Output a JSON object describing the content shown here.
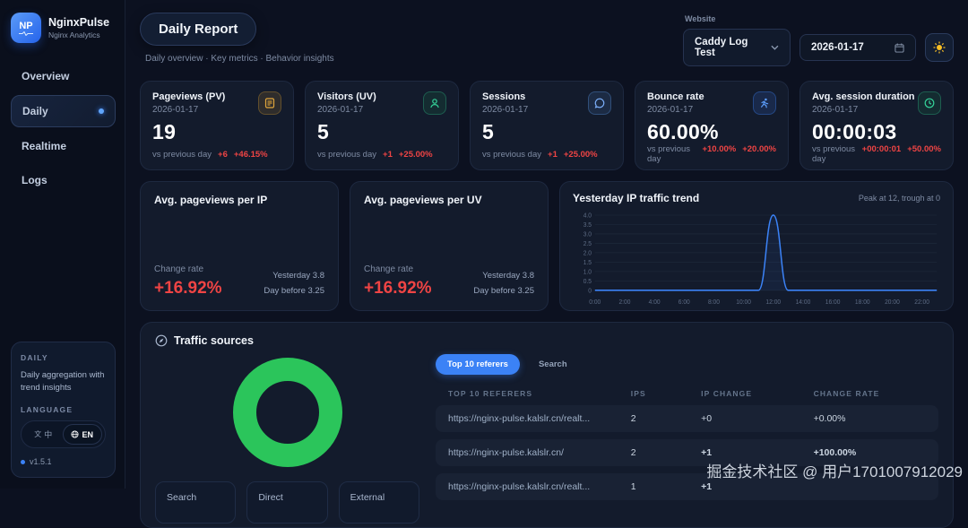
{
  "app": {
    "logo_text": "NP",
    "name": "NginxPulse",
    "tagline": "Nginx Analytics",
    "version": "v1.5.1"
  },
  "sidebar": {
    "items": [
      {
        "label": "Overview"
      },
      {
        "label": "Daily"
      },
      {
        "label": "Realtime"
      },
      {
        "label": "Logs"
      }
    ],
    "active_item": "Daily",
    "panel": {
      "title": "DAILY",
      "description": "Daily aggregation with trend insights",
      "language_label": "LANGUAGE",
      "lang_zh": "中",
      "lang_en": "EN"
    }
  },
  "header": {
    "title": "Daily Report",
    "subtitle": "Daily overview · Key metrics · Behavior insights",
    "website_label": "Website",
    "website_selected": "Caddy Log Test",
    "date": "2026-01-17"
  },
  "stat_cards": [
    {
      "title": "Pageviews (PV)",
      "date": "2026-01-17",
      "value": "19",
      "vs_label": "vs previous day",
      "delta": "+6",
      "delta_pct": "+46.15%",
      "icon": "document-icon"
    },
    {
      "title": "Visitors (UV)",
      "date": "2026-01-17",
      "value": "5",
      "vs_label": "vs previous day",
      "delta": "+1",
      "delta_pct": "+25.00%",
      "icon": "person-icon"
    },
    {
      "title": "Sessions",
      "date": "2026-01-17",
      "value": "5",
      "vs_label": "vs previous day",
      "delta": "+1",
      "delta_pct": "+25.00%",
      "icon": "chat-bubble-icon"
    },
    {
      "title": "Bounce rate",
      "date": "2026-01-17",
      "value": "60.00%",
      "vs_label": "vs previous day",
      "delta": "+10.00%",
      "delta_pct": "+20.00%",
      "icon": "runner-icon"
    },
    {
      "title": "Avg. session duration",
      "date": "2026-01-17",
      "value": "00:00:03",
      "vs_label": "vs previous day",
      "delta": "+00:00:01",
      "delta_pct": "+50.00%",
      "icon": "clock-icon"
    }
  ],
  "metric_cards": [
    {
      "title": "Avg. pageviews per IP",
      "change_label": "Change rate",
      "change_value": "+16.92%",
      "yesterday": "Yesterday 3.8",
      "day_before": "Day before 3.25"
    },
    {
      "title": "Avg. pageviews per UV",
      "change_label": "Change rate",
      "change_value": "+16.92%",
      "yesterday": "Yesterday 3.8",
      "day_before": "Day before 3.25"
    }
  ],
  "chart_data": [
    {
      "type": "line",
      "title": "Yesterday IP traffic trend",
      "note": "Peak at 12, trough at 0",
      "x": [
        0,
        1,
        2,
        3,
        4,
        5,
        6,
        7,
        8,
        9,
        10,
        11,
        12,
        13,
        14,
        15,
        16,
        17,
        18,
        19,
        20,
        21,
        22,
        23
      ],
      "values": [
        0,
        0,
        0,
        0,
        0,
        0,
        0,
        0,
        0,
        0,
        0,
        0,
        4,
        0,
        0,
        0,
        0,
        0,
        0,
        0,
        0,
        0,
        0,
        0
      ],
      "xtick_labels": [
        "0:00",
        "2:00",
        "4:00",
        "6:00",
        "8:00",
        "10:00",
        "12:00",
        "14:00",
        "16:00",
        "18:00",
        "20:00",
        "22:00"
      ],
      "ytick_values": [
        0,
        0.5,
        1,
        1.5,
        2,
        2.5,
        3,
        3.5,
        4
      ],
      "ytick_labels": [
        "0",
        "0.5",
        "1.0",
        "1.5",
        "2.0",
        "2.5",
        "3.0",
        "3.5",
        "4.0"
      ],
      "ylim": [
        0,
        4
      ],
      "grid": true,
      "legend": "none",
      "line_color": "#3b82f6"
    },
    {
      "type": "pie",
      "title": "Traffic sources",
      "values": [
        100
      ],
      "colors": [
        "#2bc55b"
      ],
      "note": "donut chart, single segment fills 100%"
    }
  ],
  "traffic": {
    "title": "Traffic sources",
    "tabs": [
      {
        "label": "Top 10 referers",
        "active": true
      },
      {
        "label": "Search",
        "active": false
      }
    ],
    "table": {
      "headers": [
        "TOP 10 REFERERS",
        "IPS",
        "IP CHANGE",
        "CHANGE RATE"
      ],
      "rows": [
        {
          "referer": "https://nginx-pulse.kalslr.cn/realt...",
          "ips": "2",
          "ip_change": "+0",
          "change_rate": "+0.00%"
        },
        {
          "referer": "https://nginx-pulse.kalslr.cn/",
          "ips": "2",
          "ip_change": "+1",
          "change_rate": "+100.00%"
        },
        {
          "referer": "https://nginx-pulse.kalslr.cn/realt...",
          "ips": "1",
          "ip_change": "+1",
          "change_rate": ""
        }
      ]
    },
    "source_buttons": [
      {
        "label": "Search"
      },
      {
        "label": "Direct"
      },
      {
        "label": "External"
      }
    ]
  },
  "watermark": "掘金技术社区 @ 用户1701007912029",
  "colors": {
    "accent": "#3b82f6",
    "negative": "#ef4444",
    "donut_green": "#2bc55b",
    "amber": "#e0a63c",
    "background": "#0c1120"
  }
}
